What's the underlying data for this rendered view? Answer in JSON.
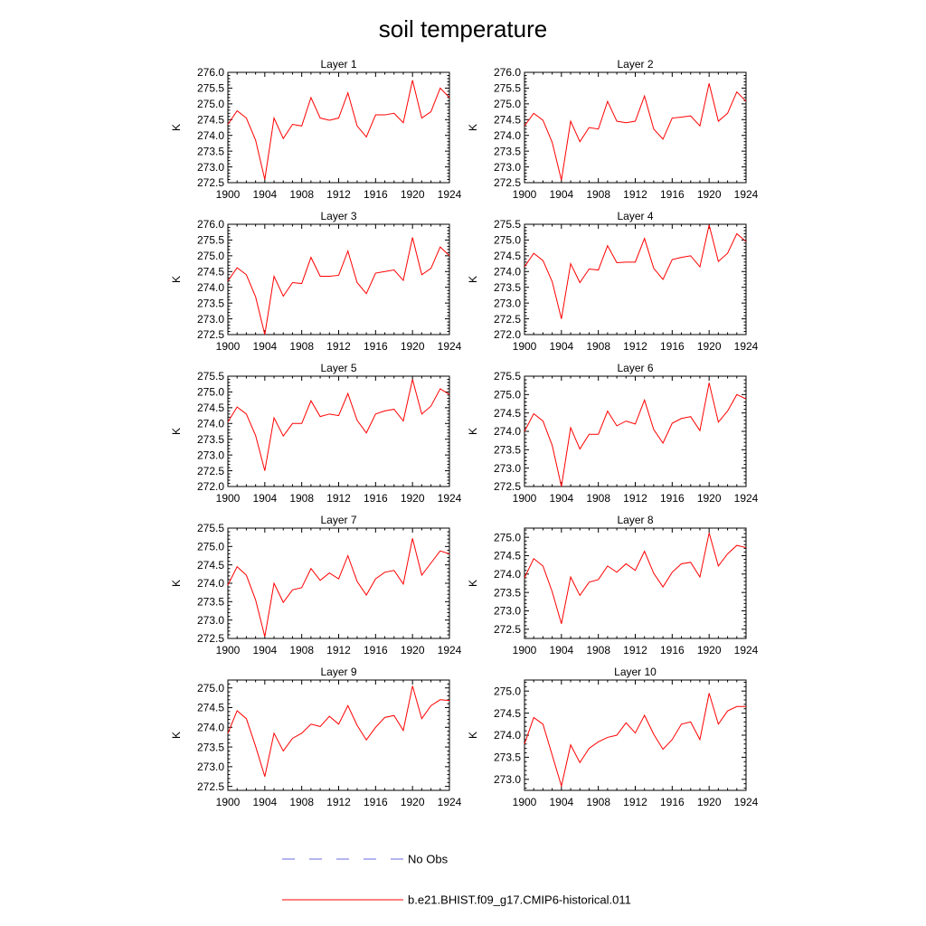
{
  "title": "soil temperature",
  "colors": {
    "model": "#ff0000",
    "obs": "#6a6ae0",
    "frame": "#000000"
  },
  "legend": [
    {
      "label": "No Obs",
      "style": "dashed",
      "color": "#6a6ae0"
    },
    {
      "label": "b.e21.BHIST.f09_g17.CMIP6-historical.011",
      "style": "solid",
      "color": "#ff0000"
    }
  ],
  "chart_data": [
    {
      "type": "line",
      "title": "Layer 1",
      "ylabel": "K",
      "xlim": [
        1900,
        1924
      ],
      "ylim": [
        272.5,
        276.0
      ],
      "xticks": [
        "1900",
        "1904",
        "1908",
        "1912",
        "1916",
        "1920",
        "1924"
      ],
      "yticks": [
        "272.5",
        "273.0",
        "273.5",
        "274.0",
        "274.5",
        "275.0",
        "275.5",
        "276.0"
      ],
      "x": [
        1900,
        1901,
        1902,
        1903,
        1904,
        1905,
        1906,
        1907,
        1908,
        1909,
        1910,
        1911,
        1912,
        1913,
        1914,
        1915,
        1916,
        1917,
        1918,
        1919,
        1920,
        1921,
        1922,
        1923,
        1924
      ],
      "series": [
        {
          "name": "b.e21.BHIST.f09_g17.CMIP6-historical.011",
          "values": [
            274.35,
            274.78,
            274.55,
            273.85,
            272.6,
            274.55,
            273.9,
            274.35,
            274.3,
            275.2,
            274.55,
            274.48,
            274.55,
            275.35,
            274.3,
            273.95,
            274.65,
            274.65,
            274.7,
            274.4,
            275.75,
            274.55,
            274.75,
            275.5,
            275.2
          ]
        }
      ]
    },
    {
      "type": "line",
      "title": "Layer 2",
      "ylabel": "K",
      "xlim": [
        1900,
        1924
      ],
      "ylim": [
        272.5,
        276.0
      ],
      "xticks": [
        "1900",
        "1904",
        "1908",
        "1912",
        "1916",
        "1920",
        "1924"
      ],
      "yticks": [
        "272.5",
        "273.0",
        "273.5",
        "274.0",
        "274.5",
        "275.0",
        "275.5",
        "276.0"
      ],
      "x": [
        1900,
        1901,
        1902,
        1903,
        1904,
        1905,
        1906,
        1907,
        1908,
        1909,
        1910,
        1911,
        1912,
        1913,
        1914,
        1915,
        1916,
        1917,
        1918,
        1919,
        1920,
        1921,
        1922,
        1923,
        1924
      ],
      "series": [
        {
          "name": "b.e21.BHIST.f09_g17.CMIP6-historical.011",
          "values": [
            274.3,
            274.7,
            274.48,
            273.78,
            272.58,
            274.45,
            273.8,
            274.25,
            274.2,
            275.08,
            274.45,
            274.4,
            274.45,
            275.25,
            274.2,
            273.88,
            274.55,
            274.58,
            274.62,
            274.3,
            275.65,
            274.45,
            274.7,
            275.38,
            275.08
          ]
        }
      ]
    },
    {
      "type": "line",
      "title": "Layer 3",
      "ylabel": "K",
      "xlim": [
        1900,
        1924
      ],
      "ylim": [
        272.5,
        276.0
      ],
      "xticks": [
        "1900",
        "1904",
        "1908",
        "1912",
        "1916",
        "1920",
        "1924"
      ],
      "yticks": [
        "272.5",
        "273.0",
        "273.5",
        "274.0",
        "274.5",
        "275.0",
        "275.5",
        "276.0"
      ],
      "x": [
        1900,
        1901,
        1902,
        1903,
        1904,
        1905,
        1906,
        1907,
        1908,
        1909,
        1910,
        1911,
        1912,
        1913,
        1914,
        1915,
        1916,
        1917,
        1918,
        1919,
        1920,
        1921,
        1922,
        1923,
        1924
      ],
      "series": [
        {
          "name": "b.e21.BHIST.f09_g17.CMIP6-historical.011",
          "values": [
            274.2,
            274.62,
            274.4,
            273.7,
            272.5,
            274.35,
            273.72,
            274.15,
            274.12,
            274.95,
            274.35,
            274.35,
            274.38,
            275.15,
            274.15,
            273.8,
            274.45,
            274.5,
            274.55,
            274.22,
            275.58,
            274.4,
            274.6,
            275.28,
            275.0
          ]
        }
      ]
    },
    {
      "type": "line",
      "title": "Layer 4",
      "ylabel": "K",
      "xlim": [
        1900,
        1924
      ],
      "ylim": [
        272.0,
        275.5
      ],
      "xticks": [
        "1900",
        "1904",
        "1908",
        "1912",
        "1916",
        "1920",
        "1924"
      ],
      "yticks": [
        "272.0",
        "272.5",
        "273.0",
        "273.5",
        "274.0",
        "274.5",
        "275.0",
        "275.5"
      ],
      "x": [
        1900,
        1901,
        1902,
        1903,
        1904,
        1905,
        1906,
        1907,
        1908,
        1909,
        1910,
        1911,
        1912,
        1913,
        1914,
        1915,
        1916,
        1917,
        1918,
        1919,
        1920,
        1921,
        1922,
        1923,
        1924
      ],
      "series": [
        {
          "name": "b.e21.BHIST.f09_g17.CMIP6-historical.011",
          "values": [
            274.15,
            274.58,
            274.35,
            273.68,
            272.5,
            274.25,
            273.65,
            274.08,
            274.05,
            274.82,
            274.28,
            274.3,
            274.3,
            275.05,
            274.1,
            273.75,
            274.38,
            274.45,
            274.5,
            274.15,
            275.48,
            274.32,
            274.58,
            275.2,
            274.95
          ]
        }
      ]
    },
    {
      "type": "line",
      "title": "Layer 5",
      "ylabel": "K",
      "xlim": [
        1900,
        1924
      ],
      "ylim": [
        272.0,
        275.5
      ],
      "xticks": [
        "1900",
        "1904",
        "1908",
        "1912",
        "1916",
        "1920",
        "1924"
      ],
      "yticks": [
        "272.0",
        "272.5",
        "273.0",
        "273.5",
        "274.0",
        "274.5",
        "275.0",
        "275.5"
      ],
      "x": [
        1900,
        1901,
        1902,
        1903,
        1904,
        1905,
        1906,
        1907,
        1908,
        1909,
        1910,
        1911,
        1912,
        1913,
        1914,
        1915,
        1916,
        1917,
        1918,
        1919,
        1920,
        1921,
        1922,
        1923,
        1924
      ],
      "series": [
        {
          "name": "b.e21.BHIST.f09_g17.CMIP6-historical.011",
          "values": [
            274.05,
            274.52,
            274.3,
            273.62,
            272.5,
            274.18,
            273.6,
            274.0,
            274.0,
            274.72,
            274.22,
            274.3,
            274.25,
            274.95,
            274.1,
            273.7,
            274.3,
            274.4,
            274.45,
            274.08,
            275.4,
            274.3,
            274.55,
            275.1,
            274.92
          ]
        }
      ]
    },
    {
      "type": "line",
      "title": "Layer 6",
      "ylabel": "K",
      "xlim": [
        1900,
        1924
      ],
      "ylim": [
        272.5,
        275.5
      ],
      "xticks": [
        "1900",
        "1904",
        "1908",
        "1912",
        "1916",
        "1920",
        "1924"
      ],
      "yticks": [
        "272.5",
        "273.0",
        "273.5",
        "274.0",
        "274.5",
        "275.0",
        "275.5"
      ],
      "x": [
        1900,
        1901,
        1902,
        1903,
        1904,
        1905,
        1906,
        1907,
        1908,
        1909,
        1910,
        1911,
        1912,
        1913,
        1914,
        1915,
        1916,
        1917,
        1918,
        1919,
        1920,
        1921,
        1922,
        1923,
        1924
      ],
      "series": [
        {
          "name": "b.e21.BHIST.f09_g17.CMIP6-historical.011",
          "values": [
            274.0,
            274.48,
            274.28,
            273.62,
            272.5,
            274.1,
            273.52,
            273.92,
            273.92,
            274.55,
            274.15,
            274.28,
            274.2,
            274.85,
            274.05,
            273.68,
            274.22,
            274.35,
            274.4,
            274.02,
            275.32,
            274.25,
            274.55,
            275.0,
            274.88
          ]
        }
      ]
    },
    {
      "type": "line",
      "title": "Layer 7",
      "ylabel": "K",
      "xlim": [
        1900,
        1924
      ],
      "ylim": [
        272.5,
        275.5
      ],
      "xticks": [
        "1900",
        "1904",
        "1908",
        "1912",
        "1916",
        "1920",
        "1924"
      ],
      "yticks": [
        "272.5",
        "273.0",
        "273.5",
        "274.0",
        "274.5",
        "275.0",
        "275.5"
      ],
      "x": [
        1900,
        1901,
        1902,
        1903,
        1904,
        1905,
        1906,
        1907,
        1908,
        1909,
        1910,
        1911,
        1912,
        1913,
        1914,
        1915,
        1916,
        1917,
        1918,
        1919,
        1920,
        1921,
        1922,
        1923,
        1924
      ],
      "series": [
        {
          "name": "b.e21.BHIST.f09_g17.CMIP6-historical.011",
          "values": [
            273.95,
            274.45,
            274.22,
            273.55,
            272.55,
            274.0,
            273.48,
            273.82,
            273.88,
            274.4,
            274.08,
            274.28,
            274.12,
            274.75,
            274.05,
            273.68,
            274.12,
            274.3,
            274.35,
            273.98,
            275.22,
            274.22,
            274.55,
            274.88,
            274.8
          ]
        }
      ]
    },
    {
      "type": "line",
      "title": "Layer 8",
      "ylabel": "K",
      "xlim": [
        1900,
        1924
      ],
      "ylim": [
        272.25,
        275.25
      ],
      "xticks": [
        "1900",
        "1904",
        "1908",
        "1912",
        "1916",
        "1920",
        "1924"
      ],
      "yticks": [
        "272.5",
        "273.0",
        "273.5",
        "274.0",
        "274.5",
        "275.0"
      ],
      "x": [
        1900,
        1901,
        1902,
        1903,
        1904,
        1905,
        1906,
        1907,
        1908,
        1909,
        1910,
        1911,
        1912,
        1913,
        1914,
        1915,
        1916,
        1917,
        1918,
        1919,
        1920,
        1921,
        1922,
        1923,
        1924
      ],
      "series": [
        {
          "name": "b.e21.BHIST.f09_g17.CMIP6-historical.011",
          "values": [
            273.9,
            274.42,
            274.22,
            273.52,
            272.65,
            273.92,
            273.42,
            273.78,
            273.85,
            274.22,
            274.05,
            274.28,
            274.1,
            274.62,
            274.02,
            273.65,
            274.05,
            274.28,
            274.32,
            273.92,
            275.12,
            274.22,
            274.55,
            274.78,
            274.72
          ]
        }
      ]
    },
    {
      "type": "line",
      "title": "Layer 9",
      "ylabel": "K",
      "xlim": [
        1900,
        1924
      ],
      "ylim": [
        272.4,
        275.2
      ],
      "xticks": [
        "1900",
        "1904",
        "1908",
        "1912",
        "1916",
        "1920",
        "1924"
      ],
      "yticks": [
        "272.5",
        "273.0",
        "273.5",
        "274.0",
        "274.5",
        "275.0"
      ],
      "x": [
        1900,
        1901,
        1902,
        1903,
        1904,
        1905,
        1906,
        1907,
        1908,
        1909,
        1910,
        1911,
        1912,
        1913,
        1914,
        1915,
        1916,
        1917,
        1918,
        1919,
        1920,
        1921,
        1922,
        1923,
        1924
      ],
      "series": [
        {
          "name": "b.e21.BHIST.f09_g17.CMIP6-historical.011",
          "values": [
            273.85,
            274.42,
            274.22,
            273.52,
            272.75,
            273.85,
            273.4,
            273.72,
            273.85,
            274.08,
            274.02,
            274.28,
            274.08,
            274.55,
            274.05,
            273.68,
            274.0,
            274.25,
            274.3,
            273.92,
            275.05,
            274.22,
            274.55,
            274.7,
            274.68
          ]
        }
      ]
    },
    {
      "type": "line",
      "title": "Layer 10",
      "ylabel": "K",
      "xlim": [
        1900,
        1924
      ],
      "ylim": [
        272.75,
        275.25
      ],
      "xticks": [
        "1900",
        "1904",
        "1908",
        "1912",
        "1916",
        "1920",
        "1924"
      ],
      "yticks": [
        "273.0",
        "273.5",
        "274.0",
        "274.5",
        "275.0"
      ],
      "x": [
        1900,
        1901,
        1902,
        1903,
        1904,
        1905,
        1906,
        1907,
        1908,
        1909,
        1910,
        1911,
        1912,
        1913,
        1914,
        1915,
        1916,
        1917,
        1918,
        1919,
        1920,
        1921,
        1922,
        1923,
        1924
      ],
      "series": [
        {
          "name": "b.e21.BHIST.f09_g17.CMIP6-historical.011",
          "values": [
            273.8,
            274.4,
            274.25,
            273.55,
            272.85,
            273.78,
            273.38,
            273.7,
            273.85,
            273.95,
            274.0,
            274.28,
            274.05,
            274.45,
            274.02,
            273.68,
            273.9,
            274.25,
            274.3,
            273.9,
            274.95,
            274.25,
            274.55,
            274.65,
            274.65
          ]
        }
      ]
    }
  ]
}
